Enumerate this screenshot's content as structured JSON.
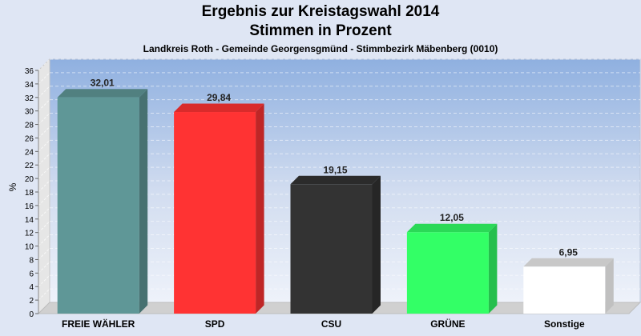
{
  "chart_data": {
    "type": "bar",
    "title": "Ergebnis zur Kreistagswahl 2014",
    "subtitle1": "Stimmen in Prozent",
    "subtitle2": "Landkreis Roth - Gemeinde Georgensgmünd - Stimmbezirk Mäbenberg (0010)",
    "ylabel": "%",
    "xlabel": "",
    "ylim": [
      0,
      36
    ],
    "yticks": [
      0,
      2,
      4,
      6,
      8,
      10,
      12,
      14,
      16,
      18,
      20,
      22,
      24,
      26,
      28,
      30,
      32,
      34,
      36
    ],
    "grid": true,
    "categories": [
      "FREIE WÄHLER",
      "SPD",
      "CSU",
      "GRÜNE",
      "Sonstige"
    ],
    "values": [
      32.01,
      29.84,
      19.15,
      12.05,
      6.95
    ],
    "value_labels": [
      "32,01",
      "29,84",
      "19,15",
      "12,05",
      "6,95"
    ],
    "colors": [
      "#5f9797",
      "#ff3333",
      "#333333",
      "#33ff66",
      "#ffffff"
    ]
  }
}
